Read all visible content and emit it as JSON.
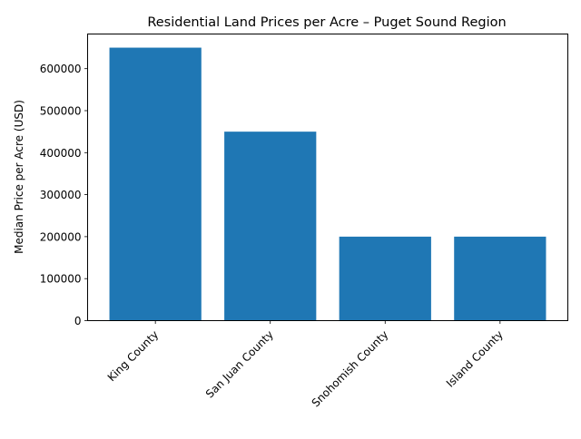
{
  "chart_data": {
    "type": "bar",
    "title": "Residential Land Prices per Acre – Puget Sound Region",
    "xlabel": "",
    "ylabel": "Median Price per Acre (USD)",
    "categories": [
      "King County",
      "San Juan County",
      "Snohomish County",
      "Island County"
    ],
    "values": [
      650000,
      450000,
      200000,
      200000
    ],
    "ylim": [
      0,
      682500
    ],
    "yticks": [
      0,
      100000,
      200000,
      300000,
      400000,
      500000,
      600000
    ],
    "ytick_labels": [
      "0",
      "100000",
      "200000",
      "300000",
      "400000",
      "500000",
      "600000"
    ],
    "grid": false,
    "legend": null,
    "bar_color": "#1f77b4",
    "xtick_rotation": 45
  }
}
